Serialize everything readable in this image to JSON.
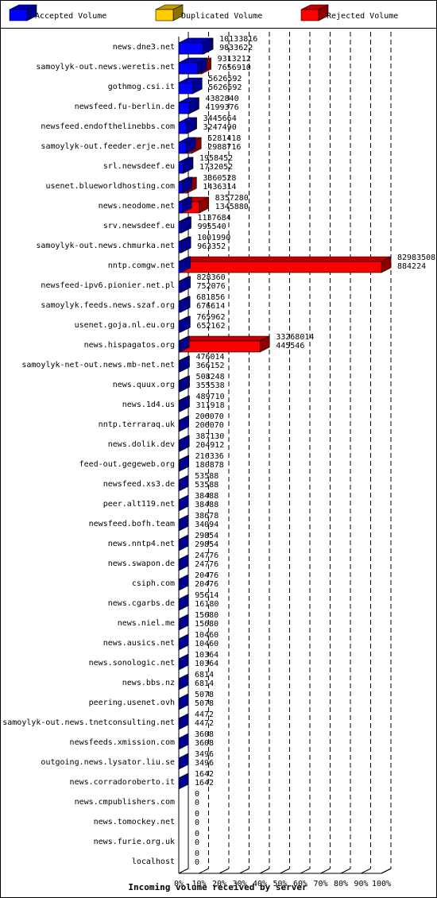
{
  "chart_data": {
    "type": "bar",
    "orientation": "horizontal",
    "stacked": true,
    "title": "",
    "xlabel": "Incoming volume received by server",
    "ylabel": "",
    "xlim": [
      0,
      100
    ],
    "x_unit": "%",
    "x_ticks": [
      "0%",
      "10%",
      "20%",
      "30%",
      "40%",
      "50%",
      "60%",
      "70%",
      "80%",
      "90%",
      "100%"
    ],
    "grid": "vertical dashed",
    "legend_position": "top",
    "colors": {
      "accepted": "#0000ff",
      "duplicated": "#ffcc00",
      "rejected": "#ff0000"
    },
    "legend": [
      "Accepted Volume",
      "Duplicated Volume",
      "Rejected Volume"
    ],
    "rows": [
      {
        "server": "news.dne3.net",
        "total": "10133816",
        "accepted": "9833622"
      },
      {
        "server": "samoylyk-out.news.weretis.net",
        "total": "9313212",
        "accepted": "7656910"
      },
      {
        "server": "gothmog.csi.it",
        "total": "5626592",
        "accepted": "5626592"
      },
      {
        "server": "newsfeed.fu-berlin.de",
        "total": "4382840",
        "accepted": "4199376"
      },
      {
        "server": "newsfeed.endofthelinebbs.com",
        "total": "3445664",
        "accepted": "3247490"
      },
      {
        "server": "samoylyk-out.feeder.erje.net",
        "total": "5281418",
        "accepted": "2988716"
      },
      {
        "server": "srl.newsdeef.eu",
        "total": "1958452",
        "accepted": "1732052"
      },
      {
        "server": "usenet.blueworldhosting.com",
        "total": "3360528",
        "accepted": "1436314"
      },
      {
        "server": "news.neodome.net",
        "total": "8357280",
        "accepted": "1345880"
      },
      {
        "server": "srv.newsdeef.eu",
        "total": "1137684",
        "accepted": "995540"
      },
      {
        "server": "samoylyk-out.news.chmurka.net",
        "total": "1001990",
        "accepted": "963352"
      },
      {
        "server": "nntp.comgw.net",
        "total": "82983508",
        "accepted": "884224"
      },
      {
        "server": "newsfeed-ipv6.pionier.net.pl",
        "total": "828360",
        "accepted": "752076"
      },
      {
        "server": "samoylyk.feeds.news.szaf.org",
        "total": "681856",
        "accepted": "676614"
      },
      {
        "server": "usenet.goja.nl.eu.org",
        "total": "765962",
        "accepted": "652162"
      },
      {
        "server": "news.hispagatos.org",
        "total": "33268014",
        "accepted": "445546"
      },
      {
        "server": "samoylyk-net-out.news.mb-net.net",
        "total": "476014",
        "accepted": "366152"
      },
      {
        "server": "news.quux.org",
        "total": "508248",
        "accepted": "355538"
      },
      {
        "server": "news.1d4.us",
        "total": "489710",
        "accepted": "311918"
      },
      {
        "server": "nntp.terraraq.uk",
        "total": "206070",
        "accepted": "206070"
      },
      {
        "server": "news.dolik.dev",
        "total": "387130",
        "accepted": "204912"
      },
      {
        "server": "feed-out.gegeweb.org",
        "total": "216336",
        "accepted": "180878"
      },
      {
        "server": "newsfeed.xs3.de",
        "total": "53588",
        "accepted": "53588"
      },
      {
        "server": "peer.alt119.net",
        "total": "38488",
        "accepted": "38488"
      },
      {
        "server": "newsfeed.bofh.team",
        "total": "38678",
        "accepted": "34094"
      },
      {
        "server": "news.nntp4.net",
        "total": "29854",
        "accepted": "29854"
      },
      {
        "server": "news.swapon.de",
        "total": "24776",
        "accepted": "24776"
      },
      {
        "server": "csiph.com",
        "total": "20476",
        "accepted": "20476"
      },
      {
        "server": "news.cgarbs.de",
        "total": "95614",
        "accepted": "16180"
      },
      {
        "server": "news.niel.me",
        "total": "15680",
        "accepted": "15680"
      },
      {
        "server": "news.ausics.net",
        "total": "10460",
        "accepted": "10460"
      },
      {
        "server": "news.sonologic.net",
        "total": "10364",
        "accepted": "10364"
      },
      {
        "server": "news.bbs.nz",
        "total": "6814",
        "accepted": "6814"
      },
      {
        "server": "peering.usenet.ovh",
        "total": "5078",
        "accepted": "5078"
      },
      {
        "server": "samoylyk-out.news.tnetconsulting.net",
        "total": "4472",
        "accepted": "4472"
      },
      {
        "server": "newsfeeds.xmission.com",
        "total": "3608",
        "accepted": "3608"
      },
      {
        "server": "outgoing.news.lysator.liu.se",
        "total": "3496",
        "accepted": "3496"
      },
      {
        "server": "news.corradoroberto.it",
        "total": "1642",
        "accepted": "1642"
      },
      {
        "server": "news.cmpublishers.com",
        "total": "0",
        "accepted": "0"
      },
      {
        "server": "news.tomockey.net",
        "total": "0",
        "accepted": "0"
      },
      {
        "server": "news.furie.org.uk",
        "total": "0",
        "accepted": "0"
      },
      {
        "server": "localhost",
        "total": "0",
        "accepted": "0"
      }
    ]
  }
}
